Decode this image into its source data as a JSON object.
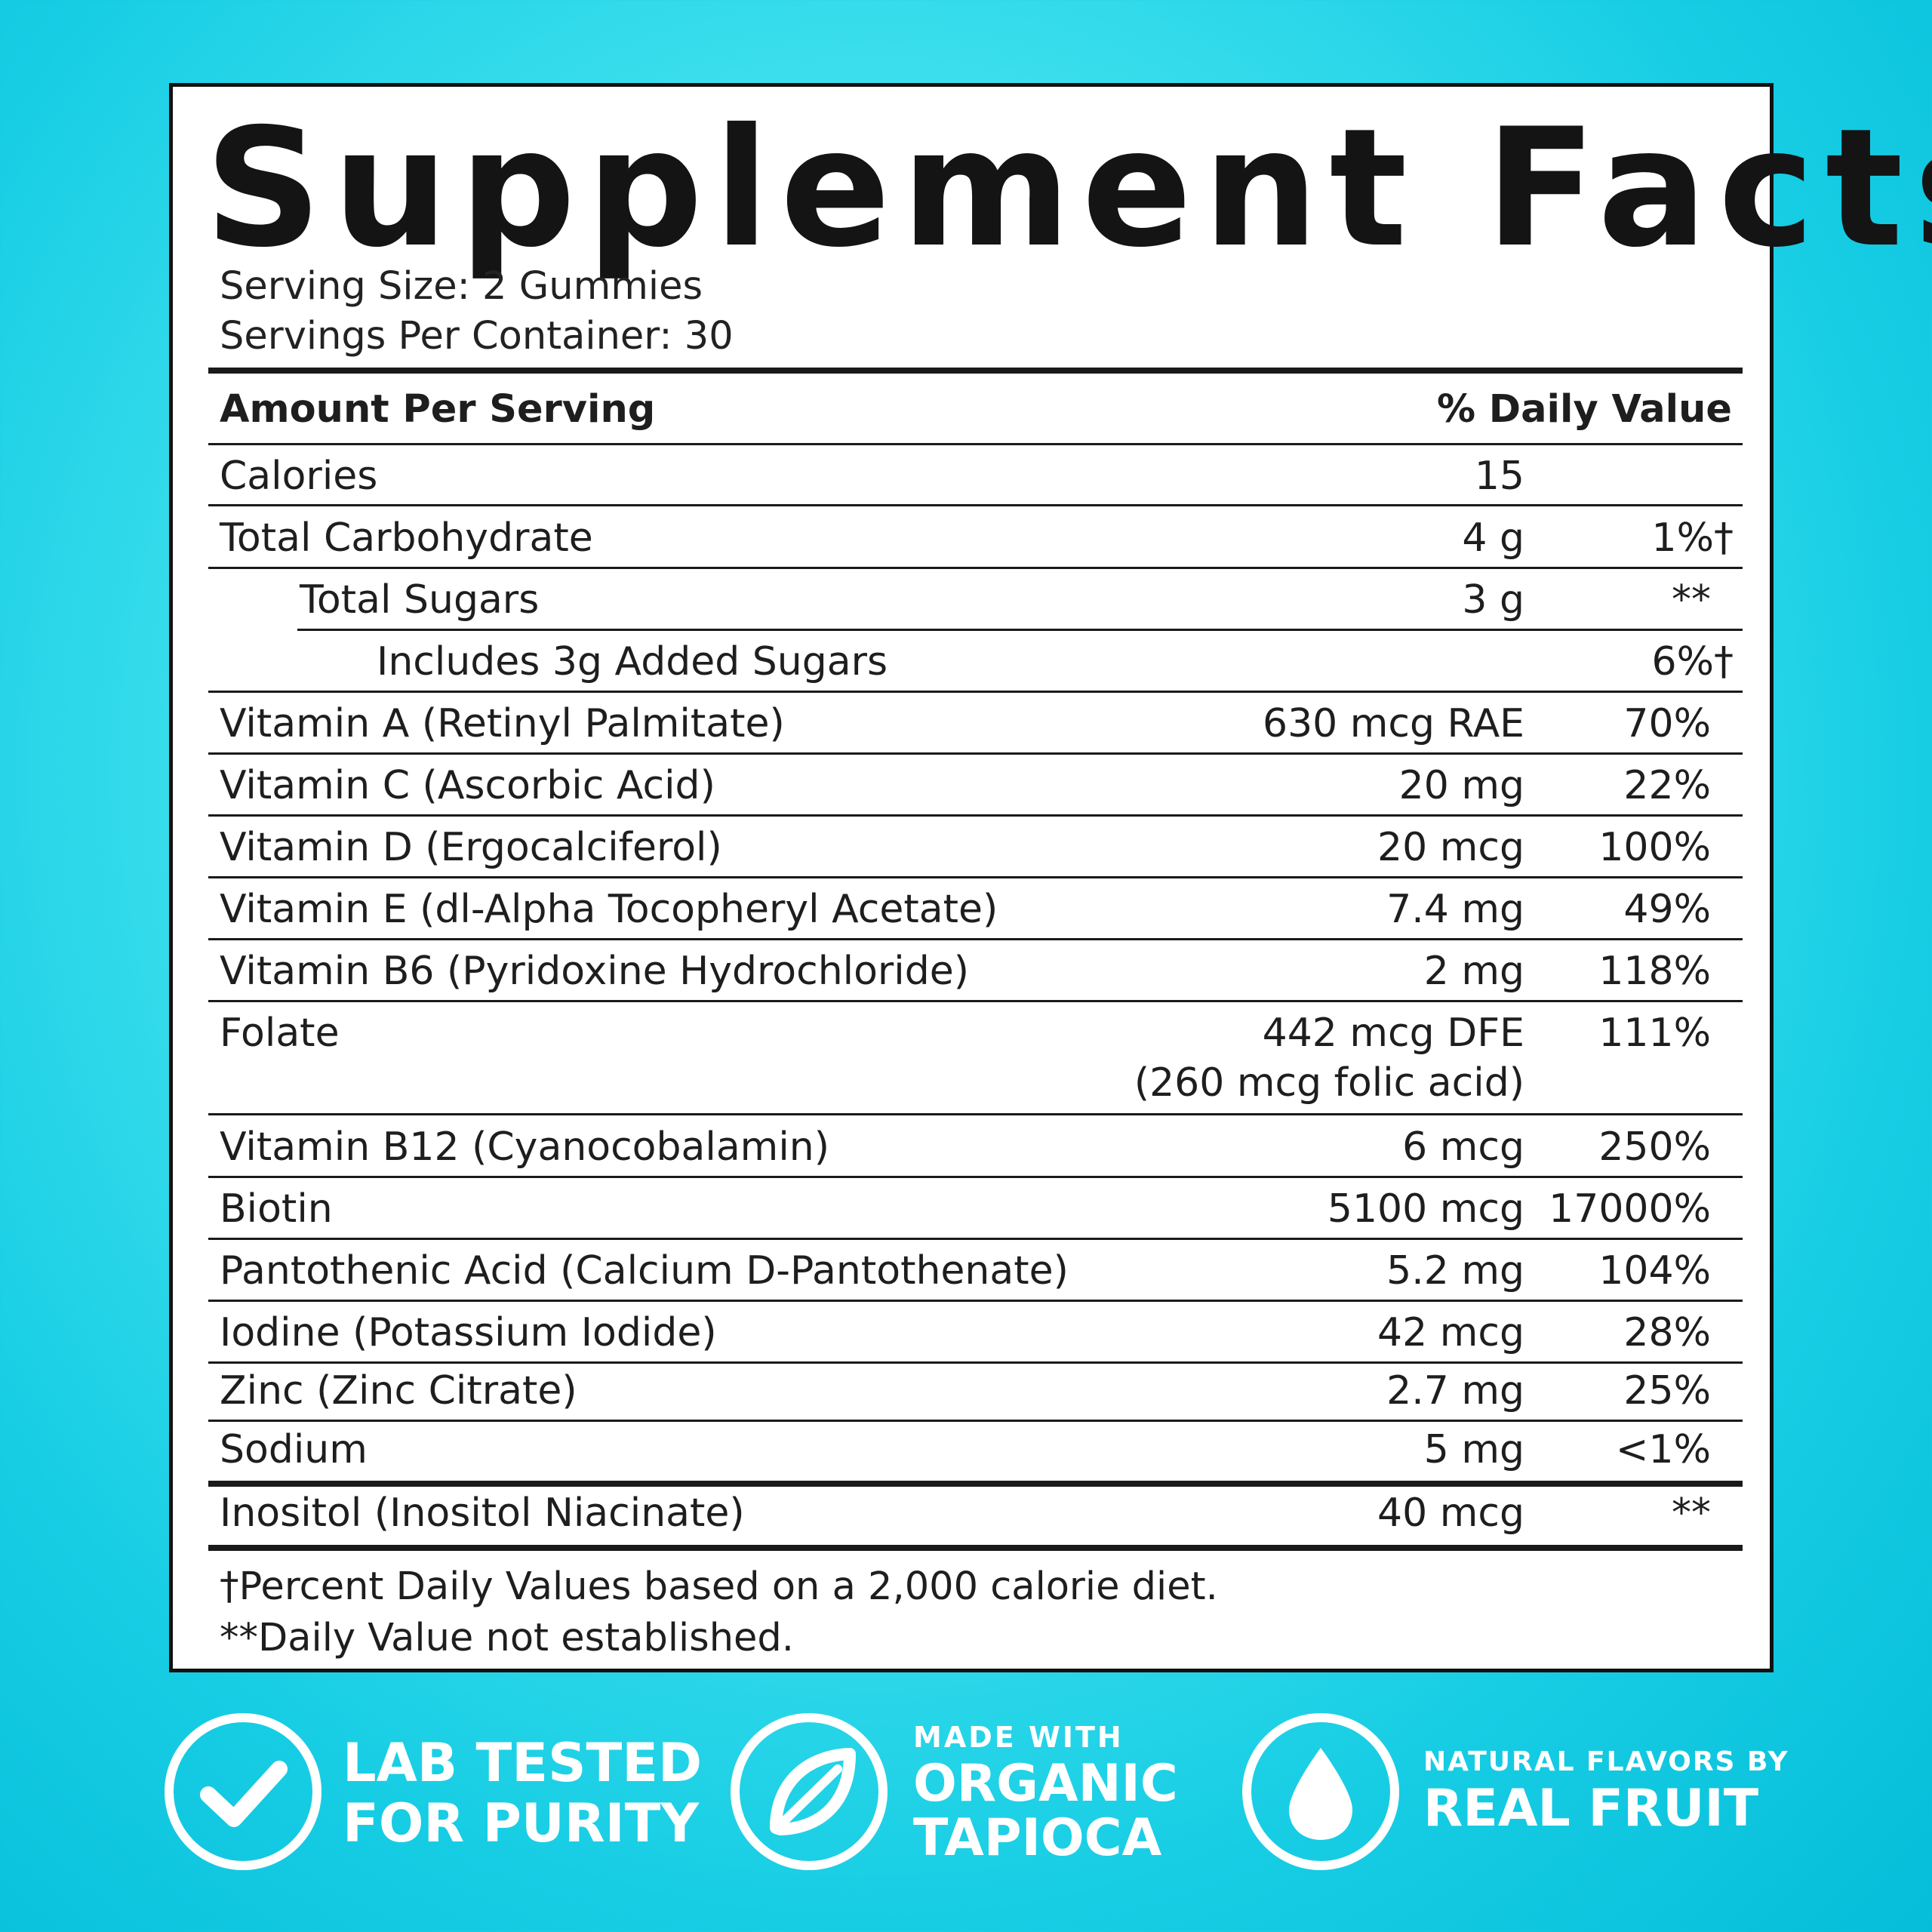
{
  "title": "Supplement Facts",
  "serving_size": "Serving Size: 2 Gummies",
  "servings_per_container": "Servings Per Container: 30",
  "header": {
    "left": "Amount Per Serving",
    "right": "% Daily Value"
  },
  "rows": [
    {
      "name": "Calories",
      "amount": "15",
      "dv": ""
    },
    {
      "name": "Total Carbohydrate",
      "amount": "4 g",
      "dv": "1%†"
    },
    {
      "name": "Total Sugars",
      "amount": "3 g",
      "dv": "**"
    },
    {
      "name": "Includes 3g Added Sugars",
      "amount": "",
      "dv": "6%†"
    },
    {
      "name": "Vitamin A (Retinyl Palmitate)",
      "amount": "630 mcg RAE",
      "dv": "70%"
    },
    {
      "name": "Vitamin C (Ascorbic Acid)",
      "amount": "20 mg",
      "dv": "22%"
    },
    {
      "name": "Vitamin D (Ergocalciferol)",
      "amount": "20 mcg",
      "dv": "100%"
    },
    {
      "name": "Vitamin E (dl-Alpha Tocopheryl Acetate)",
      "amount": "7.4 mg",
      "dv": "49%"
    },
    {
      "name": "Vitamin B6 (Pyridoxine Hydrochloride)",
      "amount": "2 mg",
      "dv": "118%"
    },
    {
      "name": "Folate",
      "amount": "442 mcg DFE",
      "amount2": "(260 mcg folic acid)",
      "dv": "111%"
    },
    {
      "name": "Vitamin B12 (Cyanocobalamin)",
      "amount": "6 mcg",
      "dv": "250%"
    },
    {
      "name": "Biotin",
      "amount": "5100 mcg",
      "dv": "17000%"
    },
    {
      "name": "Pantothenic Acid (Calcium D-Pantothenate)",
      "amount": "5.2 mg",
      "dv": "104%"
    },
    {
      "name": "Iodine (Potassium Iodide)",
      "amount": "42 mcg",
      "dv": "28%"
    },
    {
      "name": "Zinc (Zinc Citrate)",
      "amount": "2.7 mg",
      "dv": "25%"
    },
    {
      "name": "Sodium",
      "amount": "5 mg",
      "dv": "<1%"
    },
    {
      "name": "Inositol (Inositol Niacinate)",
      "amount": "40 mcg",
      "dv": "**"
    }
  ],
  "footnotes": [
    "†Percent Daily Values based on a 2,000 calorie diet.",
    "**Daily Value not established."
  ],
  "badges": [
    {
      "icon": "checkmark-icon",
      "line1": "LAB TESTED",
      "line2": "FOR PURITY"
    },
    {
      "icon": "leaf-icon",
      "small": "MADE WITH",
      "line1": "ORGANIC",
      "line2": "TAPIOCA"
    },
    {
      "icon": "water-drop-icon",
      "small": "NATURAL FLAVORS BY",
      "line1": "REAL FRUIT"
    }
  ]
}
